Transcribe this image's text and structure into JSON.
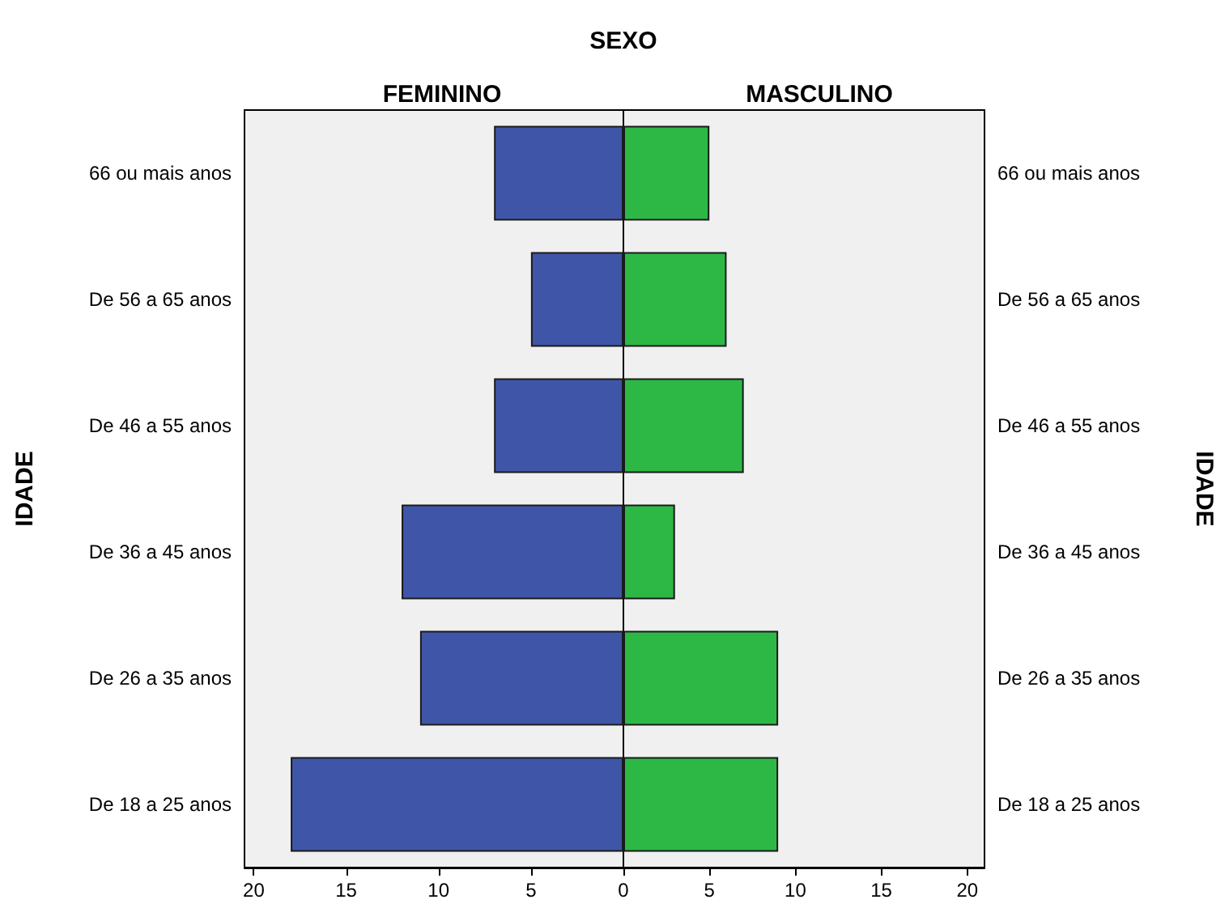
{
  "chart_data": [
    {
      "type": "bar",
      "orientation": "horizontal",
      "title": "FEMININO",
      "ylabel": "IDADE",
      "annotations": [
        "SEXO"
      ],
      "categories": [
        "66 ou mais anos",
        "De 56 a 65 anos",
        "De 46 a 55 anos",
        "De 36 a 45 anos",
        "De 26 a 35 anos",
        "De 18 a 25 anos"
      ],
      "series": [
        {
          "color": "#3f56a8",
          "values": [
            7,
            5,
            7,
            12,
            11,
            18
          ]
        }
      ],
      "xlim": [
        20.5,
        0
      ],
      "xticks": [
        20,
        15,
        10,
        5,
        0
      ],
      "grid": false
    },
    {
      "type": "bar",
      "orientation": "horizontal",
      "title": "MASCULINO",
      "y2label": "IDADE",
      "categories": [
        "66 ou mais anos",
        "De 56 a 65 anos",
        "De 46 a 55 anos",
        "De 36 a 45 anos",
        "De 26 a 35 anos",
        "De 18 a 25 anos"
      ],
      "series": [
        {
          "color": "#2db846",
          "values": [
            5,
            6,
            7,
            3,
            9,
            9
          ]
        }
      ],
      "xlim": [
        0,
        21
      ],
      "xticks": [
        5,
        10,
        15,
        20
      ],
      "grid": false
    }
  ]
}
